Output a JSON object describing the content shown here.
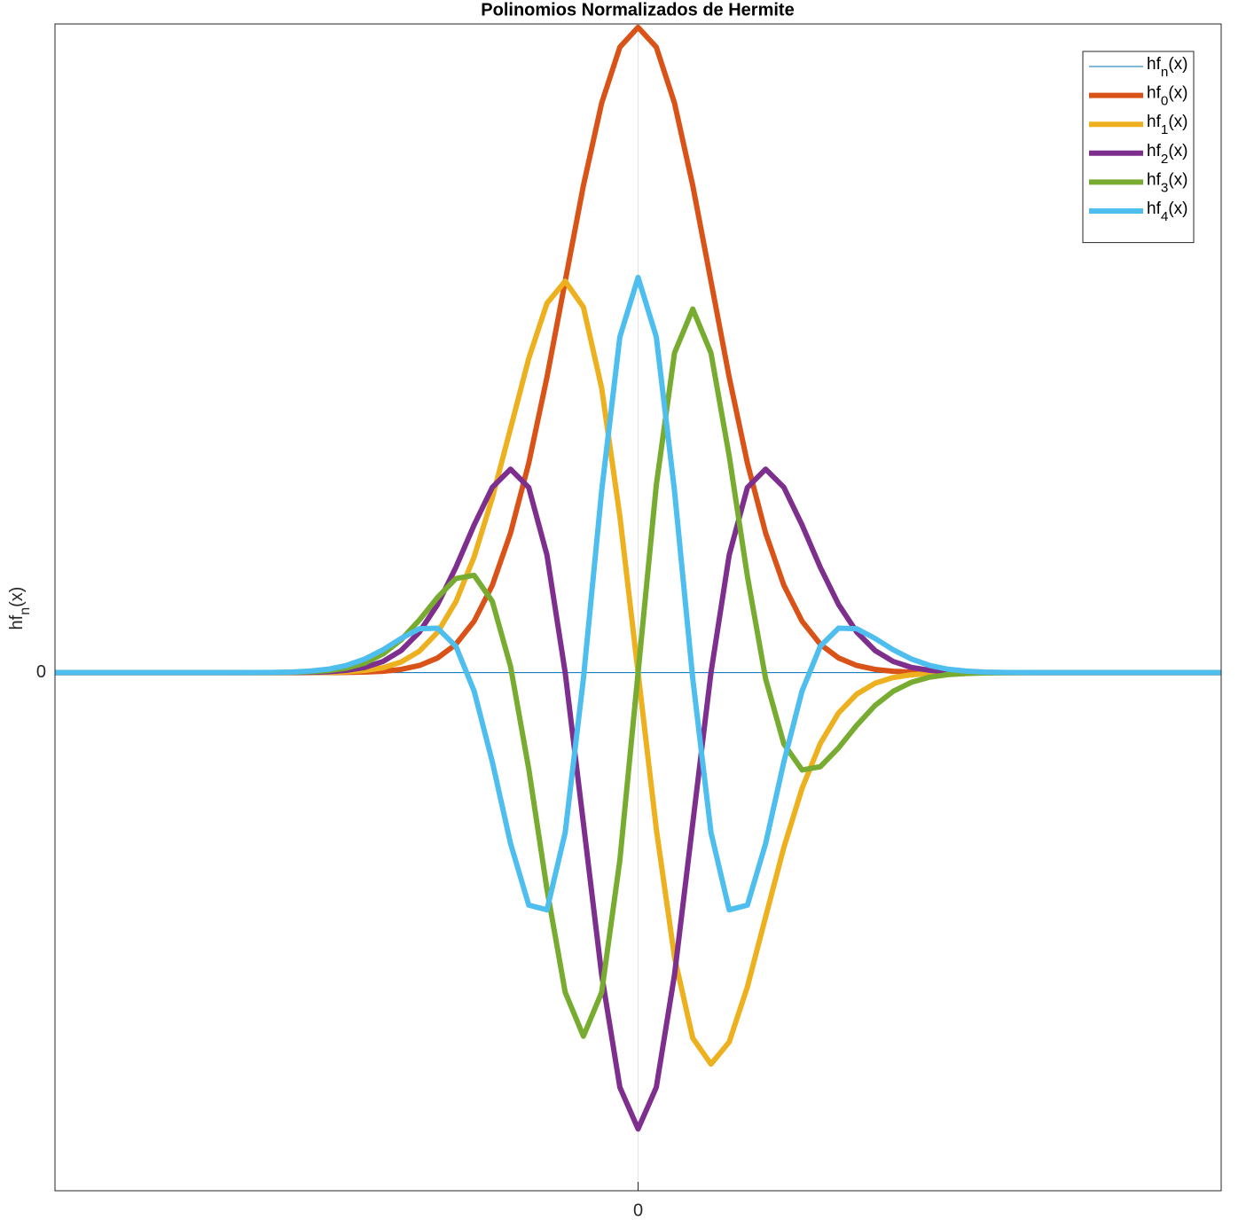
{
  "chart_data": {
    "type": "line",
    "title": "Polinomios Normalizados de Hermite",
    "ylabel": "hf_n(x)",
    "xlim": [
      -8,
      8
    ],
    "ylim": [
      -0.603,
      0.755
    ],
    "xticks": [
      0
    ],
    "yticks": [
      0
    ],
    "grid": true,
    "legend": "northeast",
    "x": [
      -8,
      -7.75,
      -7.5,
      -7.25,
      -7,
      -6.75,
      -6.5,
      -6.25,
      -6,
      -5.75,
      -5.5,
      -5.25,
      -5,
      -4.75,
      -4.5,
      -4.25,
      -4,
      -3.75,
      -3.5,
      -3.25,
      -3,
      -2.75,
      -2.5,
      -2.25,
      -2,
      -1.75,
      -1.5,
      -1.25,
      -1,
      -0.75,
      -0.5,
      -0.25,
      0,
      0.25,
      0.5,
      0.75,
      1,
      1.25,
      1.5,
      1.75,
      2,
      2.25,
      2.5,
      2.75,
      3,
      3.25,
      3.5,
      3.75,
      4,
      4.25,
      4.5,
      4.75,
      5,
      5.25,
      5.5,
      5.75,
      6,
      6.25,
      6.5,
      6.75,
      7,
      7.25,
      7.5,
      7.75,
      8
    ],
    "series": [
      {
        "name": "hf_n(x)",
        "color": "#0072bd",
        "linewidth": 1,
        "values": [
          0,
          0,
          0,
          0,
          0,
          0,
          0,
          0,
          0,
          0,
          0,
          0,
          0,
          0,
          0,
          0,
          0,
          0,
          0,
          0,
          0,
          0,
          0,
          0,
          0,
          0,
          0,
          0,
          0,
          0,
          0,
          0,
          0,
          0,
          0,
          0,
          0,
          0,
          0,
          0,
          0,
          0,
          0,
          0,
          0,
          0,
          0,
          0,
          0,
          0,
          0,
          0,
          0,
          0,
          0,
          0,
          0,
          0,
          0,
          0,
          0,
          0,
          0,
          0,
          0
        ]
      },
      {
        "name": "hf_0(x)",
        "color": "#d95319",
        "linewidth": 6,
        "values": [
          0,
          0,
          0,
          0,
          0,
          0,
          0,
          0,
          0,
          0,
          0,
          0,
          0,
          0,
          0,
          0.0001,
          0.0003,
          0.0007,
          0.0016,
          0.0038,
          0.0083,
          0.0171,
          0.033,
          0.0598,
          0.1017,
          0.1624,
          0.2438,
          0.3439,
          0.4556,
          0.567,
          0.6628,
          0.728,
          0.7511,
          0.728,
          0.6628,
          0.567,
          0.4556,
          0.3439,
          0.2438,
          0.1624,
          0.1017,
          0.0598,
          0.033,
          0.0171,
          0.0083,
          0.0038,
          0.0016,
          0.0007,
          0.0003,
          0.0001,
          0,
          0,
          0,
          0,
          0,
          0,
          0,
          0,
          0,
          0,
          0,
          0,
          0,
          0,
          0
        ]
      },
      {
        "name": "hf_1(x)",
        "color": "#edb120",
        "linewidth": 6,
        "values": [
          0,
          0,
          0,
          0,
          0,
          0,
          0,
          0,
          0,
          0,
          0,
          0,
          0,
          0,
          0.0001,
          0.0004,
          0.001,
          0.0025,
          0.0057,
          0.0124,
          0.025,
          0.047,
          0.0825,
          0.1346,
          0.2034,
          0.2842,
          0.3657,
          0.4299,
          0.4556,
          0.4253,
          0.3314,
          0.182,
          0,
          -0.182,
          -0.3314,
          -0.4253,
          -0.4556,
          -0.4299,
          -0.3657,
          -0.2842,
          -0.2034,
          -0.1346,
          -0.0825,
          -0.047,
          -0.025,
          -0.0124,
          -0.0057,
          -0.0025,
          -0.001,
          -0.0004,
          -0.0001,
          0,
          0,
          0,
          0,
          0,
          0,
          0,
          0,
          0,
          0,
          0,
          0,
          0,
          0
        ]
      },
      {
        "name": "hf_2(x)",
        "color": "#7e2f8e",
        "linewidth": 6,
        "values": [
          0,
          0,
          0,
          0,
          0,
          0,
          0,
          0,
          0,
          0,
          0,
          0,
          0,
          0.0001,
          0.0004,
          0.0011,
          0.0027,
          0.0061,
          0.013,
          0.0258,
          0.0472,
          0.0794,
          0.1225,
          0.1718,
          0.2157,
          0.2368,
          0.2155,
          0.1368,
          0,
          -0.1754,
          -0.3515,
          -0.4826,
          -0.5311,
          -0.4826,
          -0.3515,
          -0.1754,
          0,
          0.1368,
          0.2155,
          0.2368,
          0.2157,
          0.1718,
          0.1225,
          0.0794,
          0.0472,
          0.0258,
          0.013,
          0.0061,
          0.0027,
          0.0011,
          0.0004,
          0.0001,
          0,
          0,
          0,
          0,
          0,
          0,
          0,
          0,
          0,
          0,
          0,
          0,
          0
        ]
      },
      {
        "name": "hf_3(x)",
        "color": "#77ac30",
        "linewidth": 6,
        "values": [
          0,
          0,
          0,
          0,
          0,
          0,
          0,
          0,
          0,
          0,
          0,
          0,
          0.0001,
          0.0004,
          0.001,
          0.0023,
          0.0053,
          0.0112,
          0.0217,
          0.0383,
          0.0613,
          0.0876,
          0.1095,
          0.1133,
          0.083,
          0.0073,
          -0.112,
          -0.2523,
          -0.372,
          -0.4232,
          -0.3721,
          -0.2183,
          0,
          0.2183,
          0.3721,
          0.4232,
          0.372,
          0.2523,
          0.112,
          -0.0073,
          -0.083,
          -0.1133,
          -0.1095,
          -0.0876,
          -0.0613,
          -0.0383,
          -0.0217,
          -0.0112,
          -0.0053,
          -0.0023,
          -0.001,
          -0.0004,
          -0.0001,
          0,
          0,
          0,
          0,
          0,
          0,
          0,
          0,
          0,
          0,
          0,
          0
        ]
      },
      {
        "name": "hf_4(x)",
        "color": "#4dbeee",
        "linewidth": 6,
        "values": [
          0,
          0,
          0,
          0,
          0,
          0,
          0,
          0,
          0,
          0,
          0,
          0.0001,
          0.0003,
          0.0007,
          0.0018,
          0.004,
          0.0084,
          0.0158,
          0.0266,
          0.0399,
          0.0511,
          0.0517,
          0.0307,
          -0.0213,
          -0.1038,
          -0.1988,
          -0.2706,
          -0.2761,
          -0.186,
          -0.0068,
          0.2114,
          0.3907,
          0.46,
          0.3907,
          0.2114,
          -0.0068,
          -0.186,
          -0.2761,
          -0.2706,
          -0.1988,
          -0.1038,
          -0.0213,
          0.0307,
          0.0517,
          0.0511,
          0.0399,
          0.0266,
          0.0158,
          0.0084,
          0.004,
          0.0018,
          0.0007,
          0.0003,
          0.0001,
          0,
          0,
          0,
          0,
          0,
          0,
          0,
          0,
          0,
          0,
          0
        ]
      }
    ]
  }
}
